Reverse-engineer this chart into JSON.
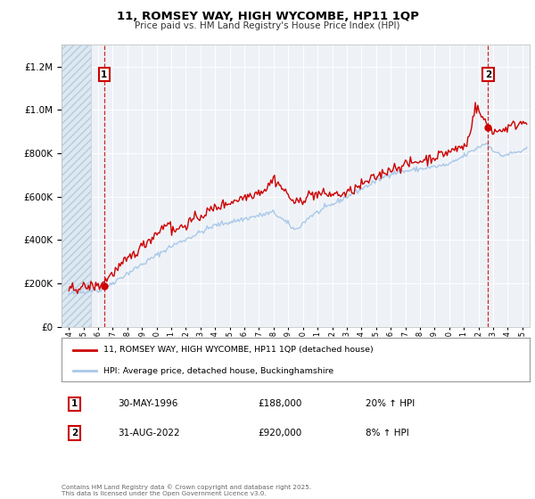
{
  "title": "11, ROMSEY WAY, HIGH WYCOMBE, HP11 1QP",
  "subtitle": "Price paid vs. HM Land Registry's House Price Index (HPI)",
  "hpi_label": "HPI: Average price, detached house, Buckinghamshire",
  "property_label": "11, ROMSEY WAY, HIGH WYCOMBE, HP11 1QP (detached house)",
  "copyright": "Contains HM Land Registry data © Crown copyright and database right 2025.\nThis data is licensed under the Open Government Licence v3.0.",
  "property_color": "#cc0000",
  "hpi_color": "#aac8e8",
  "marker1_date": 1996.41,
  "marker2_date": 2022.66,
  "sale1_price": 188000,
  "sale2_price": 920000,
  "ylim_max": 1300000,
  "xlim_min": 1993.5,
  "xlim_max": 2025.5,
  "background_plot": "#eef2f7",
  "grid_color": "#ffffff",
  "badge_color": "#cc0000",
  "sale1_date": "30-MAY-1996",
  "sale2_date": "31-AUG-2022",
  "sale1_pct": "20% ↑ HPI",
  "sale2_pct": "8% ↑ HPI"
}
